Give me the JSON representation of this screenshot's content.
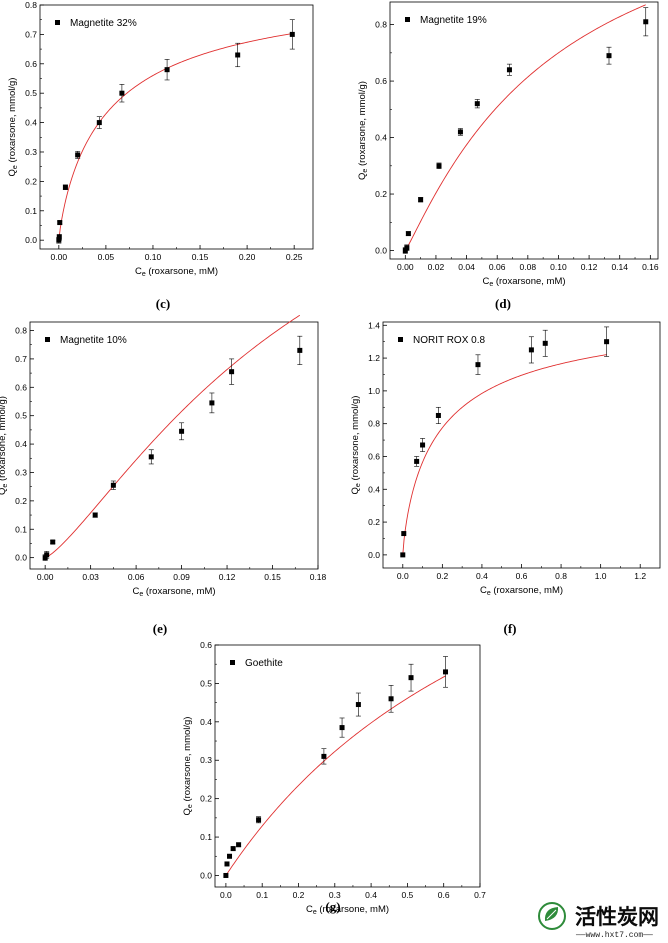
{
  "chart_data": [
    {
      "type": "scatter",
      "caption": "(c)",
      "legend": "Magnetite 32%",
      "xlabel": "C",
      "xlabel_sub": "e",
      "xlabel_rest": " (roxarsone, mM)",
      "ylabel": "Q",
      "ylabel_sub": "e",
      "ylabel_rest": " (roxarsone, mmol/g)",
      "xlim": [
        -0.02,
        0.27
      ],
      "ylim": [
        -0.03,
        0.8
      ],
      "xticks": [
        "0.00",
        "0.05",
        "0.10",
        "0.15",
        "0.20",
        "0.25"
      ],
      "xtick_values": [
        0,
        0.05,
        0.1,
        0.15,
        0.2,
        0.25
      ],
      "yticks": [
        "0.0",
        "0.1",
        "0.2",
        "0.3",
        "0.4",
        "0.5",
        "0.6",
        "0.7",
        "0.8"
      ],
      "ytick_values": [
        0,
        0.1,
        0.2,
        0.3,
        0.4,
        0.5,
        0.6,
        0.7,
        0.8
      ],
      "points": [
        {
          "x": 0.0,
          "y": 0.0,
          "err": 0.01
        },
        {
          "x": 0.0005,
          "y": 0.01,
          "err": 0.01
        },
        {
          "x": 0.001,
          "y": 0.06,
          "err": 0.005
        },
        {
          "x": 0.007,
          "y": 0.18,
          "err": 0.008
        },
        {
          "x": 0.02,
          "y": 0.29,
          "err": 0.012
        },
        {
          "x": 0.043,
          "y": 0.4,
          "err": 0.02
        },
        {
          "x": 0.067,
          "y": 0.5,
          "err": 0.03
        },
        {
          "x": 0.115,
          "y": 0.58,
          "err": 0.035
        },
        {
          "x": 0.19,
          "y": 0.63,
          "err": 0.04
        },
        {
          "x": 0.248,
          "y": 0.7,
          "err": 0.05
        }
      ],
      "fit": {
        "model": "sips",
        "qm": 0.9,
        "K": 18,
        "n": 0.85
      }
    },
    {
      "type": "scatter",
      "caption": "(d)",
      "legend": "Magnetite 19%",
      "xlabel": "C",
      "xlabel_sub": "e",
      "xlabel_rest": " (roxarsone, mM)",
      "ylabel": "Q",
      "ylabel_sub": "e",
      "ylabel_rest": " (roxarsone, mmol/g)",
      "xlim": [
        -0.01,
        0.165
      ],
      "ylim": [
        -0.03,
        0.88
      ],
      "xticks": [
        "0.00",
        "0.02",
        "0.04",
        "0.06",
        "0.08",
        "0.10",
        "0.12",
        "0.14",
        "0.16"
      ],
      "xtick_values": [
        0,
        0.02,
        0.04,
        0.06,
        0.08,
        0.1,
        0.12,
        0.14,
        0.16
      ],
      "yticks": [
        "0.0",
        "0.2",
        "0.4",
        "0.6",
        "0.8"
      ],
      "ytick_values": [
        0,
        0.2,
        0.4,
        0.6,
        0.8
      ],
      "points": [
        {
          "x": 0.0,
          "y": 0.0,
          "err": 0.01
        },
        {
          "x": 0.001,
          "y": 0.01,
          "err": 0.01
        },
        {
          "x": 0.002,
          "y": 0.06,
          "err": 0.006
        },
        {
          "x": 0.01,
          "y": 0.18,
          "err": 0.008
        },
        {
          "x": 0.022,
          "y": 0.3,
          "err": 0.01
        },
        {
          "x": 0.036,
          "y": 0.42,
          "err": 0.012
        },
        {
          "x": 0.047,
          "y": 0.52,
          "err": 0.015
        },
        {
          "x": 0.068,
          "y": 0.64,
          "err": 0.02
        },
        {
          "x": 0.133,
          "y": 0.69,
          "err": 0.03
        },
        {
          "x": 0.157,
          "y": 0.81,
          "err": 0.05
        }
      ],
      "fit": {
        "model": "sips",
        "qm": 1.4,
        "K": 10,
        "n": 1.1
      }
    },
    {
      "type": "scatter",
      "caption": "(e)",
      "legend": "Magnetite 10%",
      "xlabel": "C",
      "xlabel_sub": "e",
      "xlabel_rest": " (roxarsone, mM)",
      "ylabel": "Q",
      "ylabel_sub": "e",
      "ylabel_rest": " (roxarsone, mmol/g)",
      "xlim": [
        -0.01,
        0.18
      ],
      "ylim": [
        -0.04,
        0.83
      ],
      "xticks": [
        "0.00",
        "0.03",
        "0.06",
        "0.09",
        "0.12",
        "0.15",
        "0.18"
      ],
      "xtick_values": [
        0,
        0.03,
        0.06,
        0.09,
        0.12,
        0.15,
        0.18
      ],
      "yticks": [
        "0.0",
        "0.1",
        "0.2",
        "0.3",
        "0.4",
        "0.5",
        "0.6",
        "0.7",
        "0.8"
      ],
      "ytick_values": [
        0,
        0.1,
        0.2,
        0.3,
        0.4,
        0.5,
        0.6,
        0.7,
        0.8
      ],
      "points": [
        {
          "x": 0.0,
          "y": 0.0,
          "err": 0.01
        },
        {
          "x": 0.001,
          "y": 0.01,
          "err": 0.012
        },
        {
          "x": 0.005,
          "y": 0.055,
          "err": 0.006
        },
        {
          "x": 0.033,
          "y": 0.15,
          "err": 0.008
        },
        {
          "x": 0.045,
          "y": 0.255,
          "err": 0.015
        },
        {
          "x": 0.07,
          "y": 0.355,
          "err": 0.025
        },
        {
          "x": 0.09,
          "y": 0.445,
          "err": 0.03
        },
        {
          "x": 0.11,
          "y": 0.545,
          "err": 0.035
        },
        {
          "x": 0.123,
          "y": 0.655,
          "err": 0.045
        },
        {
          "x": 0.168,
          "y": 0.73,
          "err": 0.05
        }
      ],
      "fit": {
        "model": "sips",
        "qm": 1.8,
        "K": 5.5,
        "n": 1.3
      }
    },
    {
      "type": "scatter",
      "caption": "(f)",
      "legend": "NORIT ROX 0.8",
      "xlabel": "C",
      "xlabel_sub": "e",
      "xlabel_rest": " (roxarsone, mM)",
      "ylabel": "Q",
      "ylabel_sub": "e",
      "ylabel_rest": " (roxarsone, mmol/g)",
      "xlim": [
        -0.1,
        1.3
      ],
      "ylim": [
        -0.08,
        1.42
      ],
      "xticks": [
        "0.0",
        "0.2",
        "0.4",
        "0.6",
        "0.8",
        "1.0",
        "1.2"
      ],
      "xtick_values": [
        0,
        0.2,
        0.4,
        0.6,
        0.8,
        1.0,
        1.2
      ],
      "yticks": [
        "0.0",
        "0.2",
        "0.4",
        "0.6",
        "0.8",
        "1.0",
        "1.2",
        "1.4"
      ],
      "ytick_values": [
        0,
        0.2,
        0.4,
        0.6,
        0.8,
        1.0,
        1.2,
        1.4
      ],
      "points": [
        {
          "x": 0.0,
          "y": 0.0,
          "err": 0.0
        },
        {
          "x": 0.005,
          "y": 0.13,
          "err": 0.0
        },
        {
          "x": 0.07,
          "y": 0.57,
          "err": 0.03
        },
        {
          "x": 0.1,
          "y": 0.67,
          "err": 0.04
        },
        {
          "x": 0.18,
          "y": 0.85,
          "err": 0.05
        },
        {
          "x": 0.38,
          "y": 1.16,
          "err": 0.06
        },
        {
          "x": 0.65,
          "y": 1.25,
          "err": 0.08
        },
        {
          "x": 0.72,
          "y": 1.29,
          "err": 0.08
        },
        {
          "x": 1.03,
          "y": 1.3,
          "err": 0.09
        }
      ],
      "fit": {
        "model": "sips",
        "qm": 1.55,
        "K": 5,
        "n": 0.8
      }
    },
    {
      "type": "scatter",
      "caption": "(g)",
      "legend": "Goethite",
      "xlabel": "C",
      "xlabel_sub": "e",
      "xlabel_rest": " (roxarsone, mM)",
      "ylabel": "Q",
      "ylabel_sub": "e",
      "ylabel_rest": " (roxarsone, mmol/g)",
      "xlim": [
        -0.03,
        0.7
      ],
      "ylim": [
        -0.03,
        0.6
      ],
      "xticks": [
        "0.0",
        "0.1",
        "0.2",
        "0.3",
        "0.4",
        "0.5",
        "0.6",
        "0.7"
      ],
      "xtick_values": [
        0,
        0.1,
        0.2,
        0.3,
        0.4,
        0.5,
        0.6,
        0.7
      ],
      "yticks": [
        "0.0",
        "0.1",
        "0.2",
        "0.3",
        "0.4",
        "0.5",
        "0.6"
      ],
      "ytick_values": [
        0,
        0.1,
        0.2,
        0.3,
        0.4,
        0.5,
        0.6
      ],
      "points": [
        {
          "x": 0.0,
          "y": 0.0,
          "err": 0.0
        },
        {
          "x": 0.003,
          "y": 0.03,
          "err": 0.0
        },
        {
          "x": 0.01,
          "y": 0.05,
          "err": 0.003
        },
        {
          "x": 0.02,
          "y": 0.07,
          "err": 0.004
        },
        {
          "x": 0.035,
          "y": 0.08,
          "err": 0.005
        },
        {
          "x": 0.09,
          "y": 0.145,
          "err": 0.008
        },
        {
          "x": 0.27,
          "y": 0.31,
          "err": 0.02
        },
        {
          "x": 0.32,
          "y": 0.385,
          "err": 0.025
        },
        {
          "x": 0.365,
          "y": 0.445,
          "err": 0.03
        },
        {
          "x": 0.455,
          "y": 0.46,
          "err": 0.035
        },
        {
          "x": 0.51,
          "y": 0.515,
          "err": 0.035
        },
        {
          "x": 0.605,
          "y": 0.53,
          "err": 0.04
        }
      ],
      "fit": {
        "model": "sips",
        "qm": 1.3,
        "K": 1.1,
        "n": 1.0
      }
    }
  ],
  "watermark": {
    "brand": "活性炭网",
    "url": "——www.hxt7.com——"
  },
  "colors": {
    "fit_line": "#e03030",
    "marker": "#000000",
    "watermark_green": "#2e8b3a"
  }
}
